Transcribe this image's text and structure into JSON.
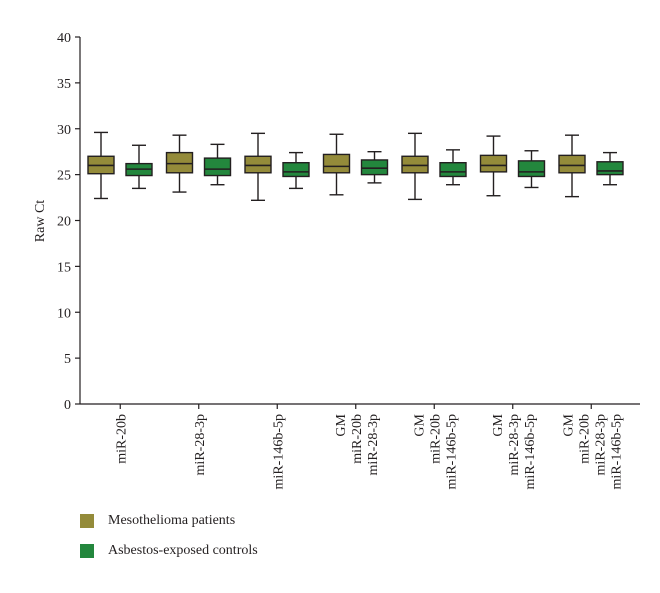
{
  "chart_data": {
    "type": "boxplot",
    "ylabel": "Raw Ct",
    "ylim": [
      0,
      40
    ],
    "yticks": [
      0,
      5,
      10,
      15,
      20,
      25,
      30,
      35,
      40
    ],
    "grid": false,
    "legend_position": "bottom-left",
    "categories": [
      [
        "miR-20b"
      ],
      [
        "miR-28-3p"
      ],
      [
        "miR-146b-5p"
      ],
      [
        "GM",
        "miR-20b",
        "miR-28-3p"
      ],
      [
        "GM",
        "miR-20b",
        "miR-146b-5p"
      ],
      [
        "GM",
        "miR-28-3p",
        "miR-146b-5p"
      ],
      [
        "GM",
        "miR-20b",
        "miR-28-3p",
        "miR-146b-5p"
      ]
    ],
    "series": [
      {
        "name": "Mesothelioma patients",
        "color": "#948b3a",
        "boxes": [
          {
            "min": 22.4,
            "q1": 25.1,
            "median": 26.0,
            "q3": 27.0,
            "max": 29.6
          },
          {
            "min": 23.1,
            "q1": 25.2,
            "median": 26.2,
            "q3": 27.4,
            "max": 29.3
          },
          {
            "min": 22.2,
            "q1": 25.2,
            "median": 26.0,
            "q3": 27.0,
            "max": 29.5
          },
          {
            "min": 22.8,
            "q1": 25.2,
            "median": 25.9,
            "q3": 27.2,
            "max": 29.4
          },
          {
            "min": 22.3,
            "q1": 25.2,
            "median": 26.0,
            "q3": 27.0,
            "max": 29.5
          },
          {
            "min": 22.7,
            "q1": 25.3,
            "median": 26.0,
            "q3": 27.1,
            "max": 29.2
          },
          {
            "min": 22.6,
            "q1": 25.2,
            "median": 26.0,
            "q3": 27.1,
            "max": 29.3
          }
        ]
      },
      {
        "name": "Asbestos-exposed controls",
        "color": "#23873d",
        "boxes": [
          {
            "min": 23.5,
            "q1": 24.9,
            "median": 25.6,
            "q3": 26.2,
            "max": 28.2
          },
          {
            "min": 23.9,
            "q1": 24.9,
            "median": 25.6,
            "q3": 26.8,
            "max": 28.3
          },
          {
            "min": 23.5,
            "q1": 24.8,
            "median": 25.3,
            "q3": 26.3,
            "max": 27.4
          },
          {
            "min": 24.1,
            "q1": 25.0,
            "median": 25.7,
            "q3": 26.6,
            "max": 27.5
          },
          {
            "min": 23.9,
            "q1": 24.8,
            "median": 25.3,
            "q3": 26.3,
            "max": 27.7
          },
          {
            "min": 23.6,
            "q1": 24.8,
            "median": 25.3,
            "q3": 26.5,
            "max": 27.6
          },
          {
            "min": 23.9,
            "q1": 25.0,
            "median": 25.4,
            "q3": 26.4,
            "max": 27.4
          }
        ]
      }
    ]
  }
}
